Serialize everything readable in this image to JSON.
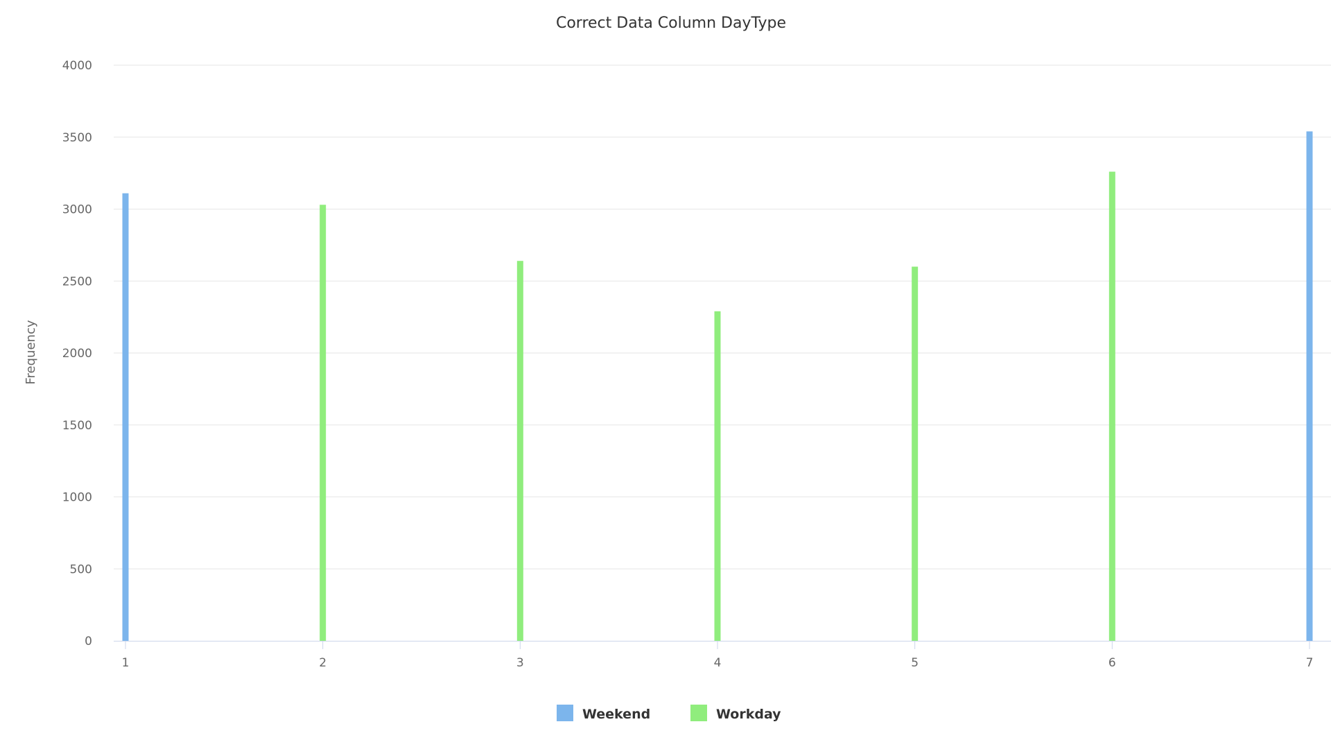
{
  "chart_data": {
    "type": "bar",
    "title": "Correct Data Column DayType",
    "xlabel": "",
    "ylabel": "Frequency",
    "categories": [
      "1",
      "2",
      "3",
      "4",
      "5",
      "6",
      "7"
    ],
    "series": [
      {
        "name": "Weekend",
        "color": "#7cb5ec",
        "points": [
          {
            "x": 1,
            "y": 3110
          },
          {
            "x": 7,
            "y": 3540
          }
        ]
      },
      {
        "name": "Workday",
        "color": "#90ed7d",
        "points": [
          {
            "x": 2,
            "y": 3030
          },
          {
            "x": 3,
            "y": 2640
          },
          {
            "x": 4,
            "y": 2290
          },
          {
            "x": 5,
            "y": 2600
          },
          {
            "x": 6,
            "y": 3260
          }
        ]
      }
    ],
    "ylim": [
      0,
      4000
    ],
    "yticks": [
      "0",
      "500",
      "1000",
      "1500",
      "2000",
      "2500",
      "3000",
      "3500",
      "4000"
    ],
    "grid": true,
    "legend_position": "bottom-center"
  }
}
